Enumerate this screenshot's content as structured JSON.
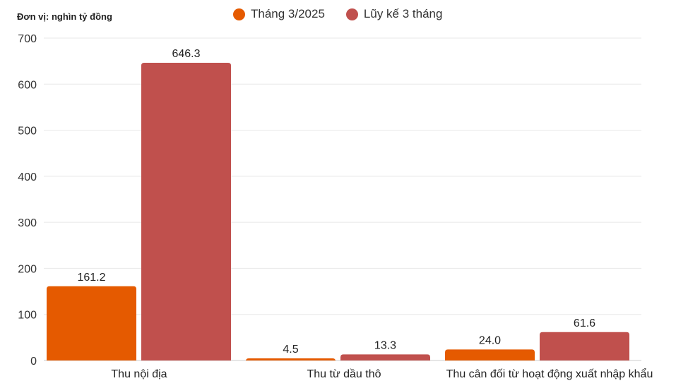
{
  "chart_data": {
    "type": "bar",
    "unit_label": "Đơn vị: nghìn tỷ đồng",
    "categories": [
      "Thu nội địa",
      "Thu từ dầu thô",
      "Thu cân đối từ hoạt động xuất nhập khẩu"
    ],
    "series": [
      {
        "name": "Tháng 3/2025",
        "color": "#E55A00",
        "values": [
          161.2,
          4.5,
          24.0
        ]
      },
      {
        "name": "Lũy kế 3 tháng",
        "color": "#C0504D",
        "values": [
          646.3,
          13.3,
          61.6
        ]
      }
    ],
    "ylim": [
      0,
      700
    ],
    "yticks": [
      0,
      100,
      200,
      300,
      400,
      500,
      600,
      700
    ],
    "grid": true,
    "legend": "top-center",
    "xlabel": "",
    "ylabel": ""
  }
}
